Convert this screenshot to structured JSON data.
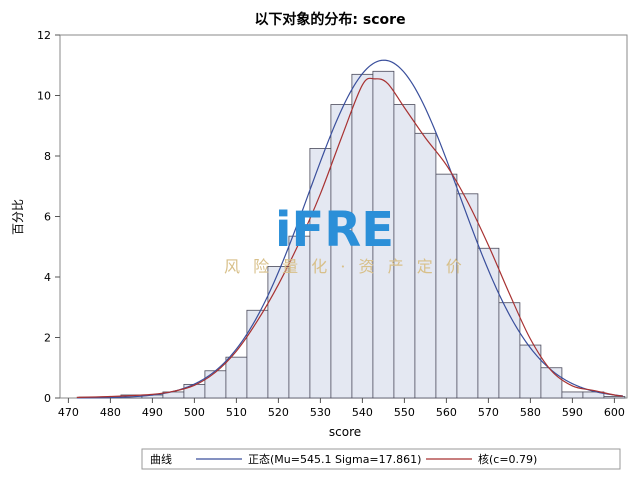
{
  "chart_data": {
    "type": "histogram",
    "title": "以下对象的分布: score",
    "xlabel": "score",
    "ylabel": "百分比",
    "xlim": [
      468,
      603
    ],
    "ylim": [
      0,
      12
    ],
    "x_ticks": [
      470,
      480,
      490,
      500,
      510,
      520,
      530,
      540,
      550,
      560,
      570,
      580,
      590,
      600
    ],
    "y_ticks": [
      0,
      2,
      4,
      6,
      8,
      10,
      12
    ],
    "bin_width": 5,
    "bins": [
      {
        "x0": 472.5,
        "x1": 477.5,
        "value": 0.03
      },
      {
        "x0": 477.5,
        "x1": 482.5,
        "value": 0.03
      },
      {
        "x0": 482.5,
        "x1": 487.5,
        "value": 0.1
      },
      {
        "x0": 487.5,
        "x1": 492.5,
        "value": 0.1
      },
      {
        "x0": 492.5,
        "x1": 497.5,
        "value": 0.2
      },
      {
        "x0": 497.5,
        "x1": 502.5,
        "value": 0.45
      },
      {
        "x0": 502.5,
        "x1": 507.5,
        "value": 0.9
      },
      {
        "x0": 507.5,
        "x1": 512.5,
        "value": 1.35
      },
      {
        "x0": 512.5,
        "x1": 517.5,
        "value": 2.9
      },
      {
        "x0": 517.5,
        "x1": 522.5,
        "value": 4.35
      },
      {
        "x0": 522.5,
        "x1": 527.5,
        "value": 5.35
      },
      {
        "x0": 527.5,
        "x1": 532.5,
        "value": 8.25
      },
      {
        "x0": 532.5,
        "x1": 537.5,
        "value": 9.7
      },
      {
        "x0": 537.5,
        "x1": 542.5,
        "value": 10.7
      },
      {
        "x0": 542.5,
        "x1": 547.5,
        "value": 10.8
      },
      {
        "x0": 547.5,
        "x1": 552.5,
        "value": 9.7
      },
      {
        "x0": 552.5,
        "x1": 557.5,
        "value": 8.75
      },
      {
        "x0": 557.5,
        "x1": 562.5,
        "value": 7.4
      },
      {
        "x0": 562.5,
        "x1": 567.5,
        "value": 6.75
      },
      {
        "x0": 567.5,
        "x1": 572.5,
        "value": 4.95
      },
      {
        "x0": 572.5,
        "x1": 577.5,
        "value": 3.15
      },
      {
        "x0": 577.5,
        "x1": 582.5,
        "value": 1.75
      },
      {
        "x0": 582.5,
        "x1": 587.5,
        "value": 1.0
      },
      {
        "x0": 587.5,
        "x1": 592.5,
        "value": 0.2
      },
      {
        "x0": 592.5,
        "x1": 597.5,
        "value": 0.2
      },
      {
        "x0": 597.5,
        "x1": 602.5,
        "value": 0.05
      }
    ],
    "curves": [
      {
        "name": "正态(Mu=545.1 Sigma=17.861)",
        "kind": "normal",
        "mu": 545.1,
        "sigma": 17.861,
        "color": "#3a4f9c"
      },
      {
        "name": "核(c=0.79)",
        "kind": "kernel",
        "color": "#a83232",
        "points": [
          [
            472,
            0.02
          ],
          [
            480,
            0.05
          ],
          [
            490,
            0.12
          ],
          [
            495,
            0.22
          ],
          [
            500,
            0.42
          ],
          [
            505,
            0.85
          ],
          [
            510,
            1.55
          ],
          [
            515,
            2.55
          ],
          [
            520,
            3.75
          ],
          [
            525,
            5.15
          ],
          [
            530,
            6.75
          ],
          [
            535,
            8.6
          ],
          [
            540,
            10.35
          ],
          [
            543,
            10.55
          ],
          [
            546,
            10.4
          ],
          [
            550,
            9.6
          ],
          [
            555,
            8.6
          ],
          [
            560,
            7.7
          ],
          [
            565,
            6.5
          ],
          [
            570,
            5.05
          ],
          [
            575,
            3.45
          ],
          [
            580,
            1.95
          ],
          [
            585,
            0.9
          ],
          [
            590,
            0.4
          ],
          [
            595,
            0.25
          ],
          [
            600,
            0.1
          ],
          [
            602,
            0.06
          ]
        ]
      }
    ],
    "legend": {
      "title": "曲线",
      "placement": "bottom"
    },
    "bar_fill": "#e4e8f2",
    "bar_stroke": "#4a4a5a"
  },
  "watermark": {
    "logo": "iFRE",
    "text": "风 险 量 化 · 资 产 定 价"
  }
}
